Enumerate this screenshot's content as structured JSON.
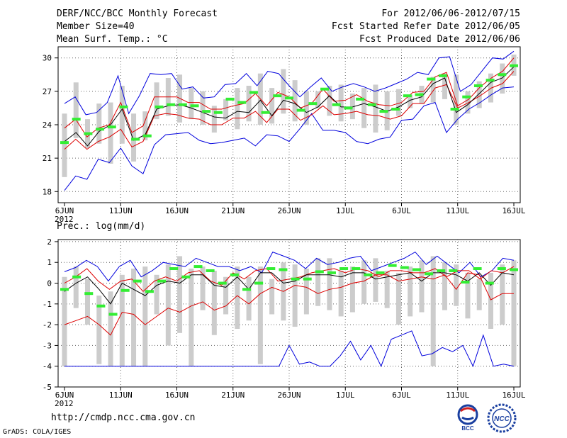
{
  "header": {
    "title": "DERF/NCC/BCC Monthly Forecast",
    "member_size": "Member Size=40",
    "variable": "Mean Surf. Temp.: °C",
    "period": "For 2012/06/06-2012/07/15",
    "started": "Fcst Started Refer Date 2012/06/05",
    "produced": "Fcst Produced Date 2012/06/06"
  },
  "footer": {
    "url": "http://cmdp.ncc.cma.gov.cn",
    "software": "GrADS: COLA/IGES",
    "logo_left": "BCC",
    "logo_right": "NCC"
  },
  "colors": {
    "envelope": "#0000dd",
    "spread": "#dd0000",
    "mean": "#000000",
    "box": "#cccccc",
    "median": "#33ee33",
    "grid": "#666666"
  },
  "chart_data": [
    {
      "type": "line",
      "title": "Mean Surf. Temp.: °C",
      "ylim": [
        17,
        31
      ],
      "yticks": [
        18,
        21,
        24,
        27,
        30
      ],
      "x_ticks": [
        "6JUN",
        "11JUN",
        "16JUN",
        "21JUN",
        "26JUN",
        "1JUL",
        "6JUL",
        "11JUL",
        "16JUL"
      ],
      "x_sub": "2012",
      "series": [
        {
          "name": "max",
          "values": [
            25.9,
            26.5,
            24.9,
            25.1,
            26.0,
            28.4,
            25.0,
            26.6,
            28.6,
            28.5,
            28.6,
            27.2,
            27.4,
            26.4,
            26.5,
            27.6,
            27.7,
            28.6,
            27.5,
            28.8,
            28.6,
            27.5,
            26.5,
            27.4,
            28.2,
            27.0,
            27.4,
            27.7,
            27.4,
            27.0,
            27.3,
            27.7,
            28.1,
            28.7,
            28.5,
            30.0,
            30.1,
            27.0,
            27.6,
            28.8,
            30.0,
            29.9,
            30.6
          ]
        },
        {
          "name": "p_high",
          "values": [
            23.7,
            24.5,
            22.9,
            23.7,
            24.0,
            26.0,
            23.3,
            23.9,
            26.5,
            26.5,
            26.5,
            26.0,
            26.0,
            25.4,
            25.4,
            25.7,
            25.9,
            26.8,
            25.7,
            26.9,
            26.5,
            25.5,
            25.9,
            27.2,
            26.1,
            26.2,
            26.7,
            26.1,
            25.8,
            25.7,
            26.0,
            26.9,
            27.0,
            28.3,
            28.7,
            25.7,
            26.3,
            27.4,
            28.2,
            28.8,
            30.0
          ]
        },
        {
          "name": "mean",
          "values": [
            22.5,
            23.3,
            22.1,
            23.4,
            24.0,
            25.4,
            22.6,
            23.1,
            25.4,
            25.7,
            25.8,
            25.5,
            25.1,
            24.7,
            24.6,
            25.2,
            25.1,
            26.2,
            24.8,
            26.2,
            25.9,
            25.1,
            25.6,
            26.6,
            25.6,
            25.6,
            25.9,
            25.6,
            25.2,
            25.6,
            26.2,
            26.5,
            27.7,
            28.2,
            25.1,
            25.8,
            26.8,
            27.8,
            28.2,
            29.2
          ]
        },
        {
          "name": "p_low",
          "values": [
            21.8,
            22.7,
            21.8,
            22.5,
            22.9,
            23.6,
            22.0,
            22.5,
            24.8,
            25.0,
            24.9,
            24.6,
            24.5,
            24.0,
            24.0,
            24.6,
            24.6,
            25.2,
            24.2,
            25.4,
            25.4,
            24.4,
            24.9,
            25.7,
            24.9,
            25.0,
            25.2,
            24.9,
            24.8,
            24.5,
            24.8,
            25.9,
            25.9,
            27.3,
            27.6,
            25.5,
            26.0,
            26.6,
            27.3,
            27.7,
            28.8
          ]
        },
        {
          "name": "min",
          "values": [
            18.1,
            19.4,
            19.1,
            20.9,
            20.6,
            21.9,
            20.3,
            19.6,
            22.2,
            23.1,
            23.2,
            23.3,
            22.6,
            22.3,
            22.4,
            22.6,
            22.8,
            22.1,
            23.1,
            23.0,
            22.5,
            23.7,
            25.0,
            23.5,
            23.5,
            23.3,
            22.5,
            22.3,
            22.7,
            22.9,
            24.4,
            24.5,
            25.7,
            26.0,
            23.3,
            24.5,
            25.4,
            26.0,
            26.7,
            27.3,
            27.4
          ]
        },
        {
          "name": "box_top",
          "values": [
            25.0,
            27.8,
            24.5,
            25.9,
            26.0,
            27.5,
            25.0,
            25.2,
            27.8,
            28.2,
            28.5,
            27.3,
            27.0,
            25.7,
            26.3,
            27.3,
            27.5,
            28.6,
            27.3,
            29.0,
            28.0,
            27.0,
            27.0,
            27.5,
            27.6,
            26.8,
            27.3,
            27.6,
            27.0,
            27.2,
            26.7,
            27.5,
            28.3,
            28.6,
            28.5,
            27.0,
            27.9,
            28.6,
            29.5,
            30.3
          ]
        },
        {
          "name": "box_bottom",
          "values": [
            19.3,
            22.8,
            21.9,
            22.3,
            20.5,
            22.3,
            20.7,
            22.6,
            24.5,
            24.8,
            24.2,
            24.5,
            24.0,
            23.3,
            24.4,
            23.6,
            24.3,
            24.0,
            24.1,
            25.0,
            24.3,
            24.0,
            25.5,
            24.8,
            24.3,
            24.5,
            23.7,
            23.3,
            23.5,
            24.8,
            25.5,
            25.9,
            26.0,
            26.3,
            24.0,
            25.0,
            25.5,
            26.0,
            26.8,
            28.4
          ]
        },
        {
          "name": "median",
          "values": [
            22.4,
            24.5,
            23.2,
            23.6,
            23.8,
            25.6,
            22.7,
            23.0,
            25.6,
            25.8,
            25.8,
            25.7,
            25.2,
            25.1,
            26.3,
            26.0,
            26.9,
            25.1,
            26.6,
            26.4,
            25.3,
            25.9,
            27.2,
            25.8,
            25.5,
            26.3,
            25.8,
            25.2,
            25.4,
            26.6,
            26.7,
            28.1,
            28.4,
            25.4,
            26.5,
            27.5,
            28.0,
            28.5,
            29.3
          ]
        }
      ]
    },
    {
      "type": "line",
      "title": "Prec.: log(mm/d)",
      "ylim": [
        -5,
        2.1
      ],
      "yticks": [
        -5,
        -4,
        -3,
        -2,
        -1,
        0,
        1,
        2
      ],
      "x_ticks": [
        "6JUN",
        "11JUN",
        "16JUN",
        "21JUN",
        "26JUN",
        "1JUL",
        "6JUL",
        "11JUL",
        "16JUL"
      ],
      "x_sub": "2012",
      "series": [
        {
          "name": "max",
          "values": [
            0.55,
            0.75,
            1.1,
            0.8,
            0.1,
            0.8,
            1.1,
            0.3,
            0.6,
            1.0,
            0.9,
            0.8,
            1.2,
            1.0,
            0.8,
            0.8,
            0.6,
            0.8,
            0.5,
            1.5,
            1.3,
            1.1,
            0.7,
            1.2,
            0.9,
            1.0,
            1.2,
            1.3,
            0.6,
            0.8,
            1.0,
            1.2,
            1.5,
            0.9,
            1.3,
            0.9,
            0.5,
            1.0,
            0.3,
            0.6,
            1.2,
            1.1
          ]
        },
        {
          "name": "p_high",
          "values": [
            0.0,
            0.3,
            0.7,
            0.1,
            -0.3,
            0.1,
            0.2,
            -0.4,
            0.1,
            0.3,
            0.1,
            0.5,
            0.6,
            0.1,
            -0.1,
            0.5,
            0.2,
            0.6,
            0.7,
            0.1,
            0.2,
            0.3,
            0.5,
            0.6,
            0.7,
            0.5,
            0.7,
            0.6,
            0.3,
            0.6,
            0.6,
            0.5,
            0.5,
            0.7,
            0.3,
            0.6,
            0.6,
            0.2,
            0.6,
            0.5,
            0.8
          ]
        },
        {
          "name": "mean",
          "values": [
            -0.4,
            0.0,
            0.3,
            -0.3,
            -1.0,
            0.0,
            -0.3,
            -0.6,
            -0.1,
            0.1,
            0.0,
            0.4,
            0.4,
            -0.1,
            -0.2,
            0.3,
            -0.3,
            0.5,
            0.5,
            0.0,
            0.1,
            0.4,
            0.4,
            0.4,
            0.3,
            0.5,
            0.5,
            0.2,
            0.3,
            0.4,
            0.5,
            0.1,
            0.5,
            0.5,
            0.4,
            0.1,
            0.5,
            -0.1,
            0.5,
            0.4
          ]
        },
        {
          "name": "p_low",
          "values": [
            -2.0,
            -1.8,
            -1.6,
            -2.0,
            -2.5,
            -1.4,
            -1.5,
            -2.0,
            -1.6,
            -1.2,
            -1.4,
            -1.1,
            -0.9,
            -1.3,
            -1.1,
            -0.6,
            -1.0,
            -0.5,
            -0.2,
            -0.4,
            -0.1,
            -0.2,
            -0.5,
            -0.3,
            -0.2,
            0.0,
            0.1,
            0.4,
            0.4,
            0.1,
            0.2,
            0.3,
            0.2,
            0.4,
            -0.3,
            0.5,
            0.4,
            -0.8,
            -0.5,
            -0.5
          ]
        },
        {
          "name": "min",
          "values": [
            -4.0,
            -4.0,
            -4.0,
            -4.0,
            -4.0,
            -4.0,
            -4.0,
            -4.0,
            -4.0,
            -4.0,
            -4.0,
            -4.0,
            -4.0,
            -4.0,
            -4.0,
            -4.0,
            -4.0,
            -4.0,
            -4.0,
            -4.0,
            -4.0,
            -4.0,
            -3.0,
            -3.9,
            -3.8,
            -4.0,
            -4.0,
            -3.5,
            -2.8,
            -3.7,
            -3.0,
            -4.0,
            -2.7,
            -2.5,
            -2.3,
            -3.5,
            -3.4,
            -3.1,
            -3.3,
            -3.0,
            -4.0,
            -2.5,
            -4.0,
            -3.9,
            -4.0
          ]
        },
        {
          "name": "box_top",
          "values": [
            0.3,
            0.8,
            0.2,
            -0.6,
            -0.4,
            0.4,
            0.7,
            0.8,
            0.4,
            0.9,
            1.3,
            0.7,
            0.8,
            0.6,
            0.3,
            0.8,
            0.3,
            0.8,
            0.2,
            1.0,
            0.9,
            0.7,
            1.2,
            1.2,
            0.6,
            0.8,
            1.1,
            1.2,
            0.6,
            0.5,
            0.8,
            1.1,
            1.3,
            1.0,
            0.9,
            0.5,
            0.2,
            0.5,
            0.9,
            1.1
          ]
        },
        {
          "name": "box_bottom",
          "values": [
            -4.0,
            -1.2,
            -2.0,
            -3.9,
            -4.0,
            -4.0,
            -4.0,
            -4.0,
            -1.5,
            -3.0,
            -2.4,
            -4.0,
            -1.3,
            -2.5,
            -1.5,
            -2.2,
            -1.8,
            -3.9,
            -1.5,
            -1.8,
            -2.1,
            -1.5,
            -1.1,
            -1.3,
            -1.6,
            -1.4,
            -1.0,
            -0.9,
            -1.2,
            -2.0,
            -1.6,
            -1.4,
            -4.0,
            -1.3,
            -1.1,
            -1.7,
            -1.3,
            -2.2,
            -2.0,
            -4.0
          ]
        },
        {
          "name": "median",
          "values": [
            -0.3,
            0.3,
            -0.5,
            -1.1,
            -1.5,
            -0.35,
            0.1,
            -0.4,
            0.1,
            0.7,
            0.3,
            0.8,
            0.6,
            0.0,
            0.4,
            -0.3,
            0.0,
            0.7,
            0.65,
            0.2,
            0.2,
            0.55,
            0.5,
            0.7,
            0.7,
            0.4,
            0.5,
            0.85,
            0.75,
            0.65,
            0.45,
            0.6,
            0.6,
            0.05,
            0.7,
            0.0,
            0.7,
            0.65
          ]
        }
      ]
    }
  ]
}
